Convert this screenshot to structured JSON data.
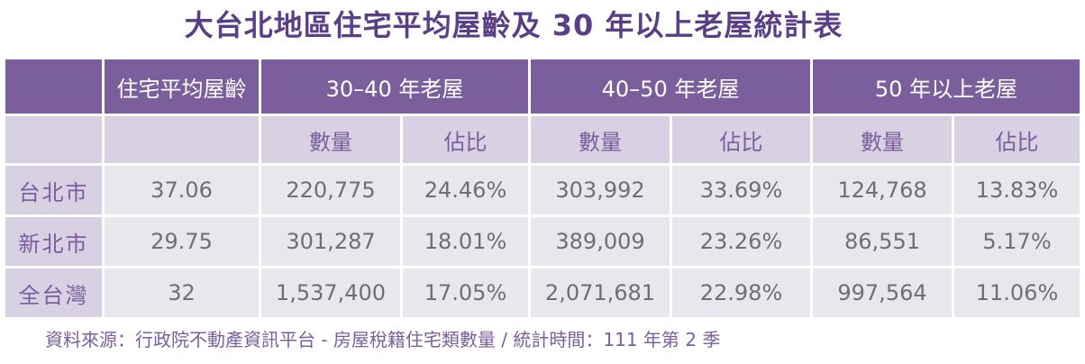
{
  "title": "大台北地區住宅平均屋齡及 30 年以上老屋統計表",
  "header": {
    "blank": "",
    "avg_age": "住宅平均屋齡",
    "group1": "30–40 年老屋",
    "group2": "40–50 年老屋",
    "group3": "50 年以上老屋"
  },
  "subheader": {
    "count": "數量",
    "ratio": "佔比"
  },
  "rows": [
    {
      "city": "台北市",
      "avg_age": "37.06",
      "c1": "220,775",
      "r1": "24.46%",
      "c2": "303,992",
      "r2": "33.69%",
      "c3": "124,768",
      "r3": "13.83%"
    },
    {
      "city": "新北市",
      "avg_age": "29.75",
      "c1": "301,287",
      "r1": "18.01%",
      "c2": "389,009",
      "r2": "23.26%",
      "c3": "86,551",
      "r3": "5.17%"
    },
    {
      "city": "全台灣",
      "avg_age": "32",
      "c1": "1,537,400",
      "r1": "17.05%",
      "c2": "2,071,681",
      "r2": "22.98%",
      "c3": "997,564",
      "r3": "11.06%"
    }
  ],
  "source": "資料來源：行政院不動產資訊平台 - 房屋稅籍住宅類數量 / 統計時間：111 年第 2 季",
  "colors": {
    "header_bg": "#7b5e9c",
    "subheader_bg": "#d8d0e3",
    "cell_bg": "#e7e7ed",
    "title": "#5b3f86"
  }
}
